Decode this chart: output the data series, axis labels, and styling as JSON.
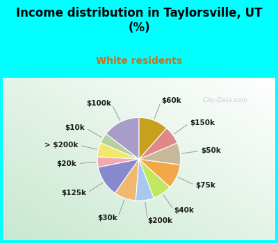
{
  "title": "Income distribution in Taylorsville, UT\n(%)",
  "subtitle": "White residents",
  "background_color": "#00FFFF",
  "labels": [
    "$100k",
    "$10k",
    "> $200k",
    "$20k",
    "$125k",
    "$30k",
    "$200k",
    "$40k",
    "$75k",
    "$50k",
    "$150k",
    "$60k"
  ],
  "values": [
    14.5,
    4.0,
    5.5,
    4.0,
    12.0,
    8.5,
    7.0,
    7.5,
    9.5,
    8.5,
    7.0,
    11.5
  ],
  "colors": [
    "#a89cc8",
    "#b5cfa0",
    "#f0e868",
    "#f4a8b0",
    "#8888cc",
    "#f0b870",
    "#a8c8f0",
    "#c0e860",
    "#f0a848",
    "#c8b898",
    "#e08888",
    "#c8a020"
  ],
  "label_fontsize": 7.5,
  "title_fontsize": 12,
  "subtitle_fontsize": 10,
  "subtitle_color": "#c87020",
  "watermark": "  City-Data.com"
}
